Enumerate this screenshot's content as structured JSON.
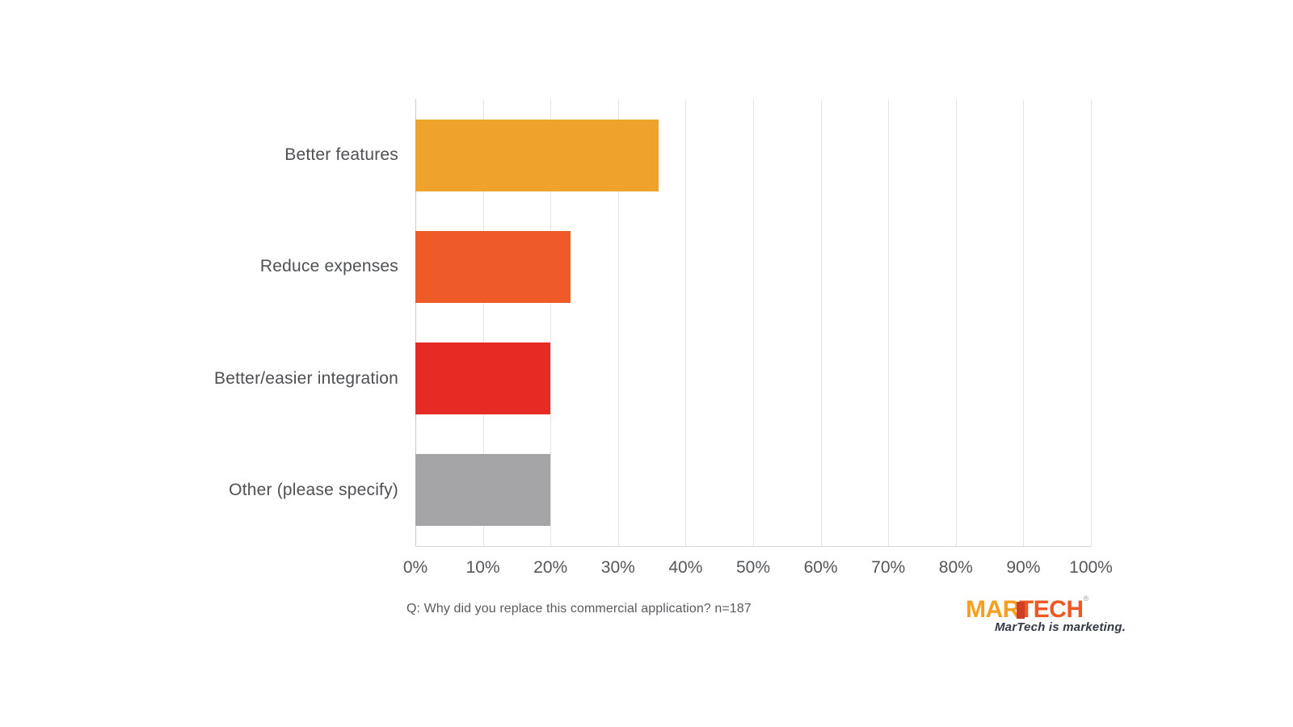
{
  "chart_data": {
    "type": "bar",
    "orientation": "horizontal",
    "title": "",
    "categories": [
      "Better features",
      "Reduce expenses",
      "Better/easier integration",
      "Other (please specify)"
    ],
    "values": [
      36,
      23,
      20,
      20
    ],
    "value_unit": "%",
    "bar_colors": [
      "#F0A32C",
      "#EE5B28",
      "#E52B24",
      "#A5A5A7"
    ],
    "x_ticks": [
      "0%",
      "10%",
      "20%",
      "30%",
      "40%",
      "50%",
      "60%",
      "70%",
      "80%",
      "90%",
      "100%"
    ],
    "xlim": [
      0,
      100
    ],
    "grid": "vertical-gridlines-every-10pct",
    "legend": "none"
  },
  "caption": "Q: Why did you replace this commercial application? n=187",
  "branding": {
    "wordmark_part1": "MAR",
    "wordmark_part2": "TECH",
    "trademark": "®",
    "tagline": "MarTech is marketing.",
    "colors": {
      "mar": "#F69F1E",
      "tech": "#EF5724",
      "notch": "#CE3F25",
      "tagline": "#333B46"
    }
  },
  "theme": {
    "background": "#FFFFFF",
    "label_text": "#4F5053",
    "tick_text": "#56575A",
    "caption_text": "#5A5B5E",
    "gridline": "#E4E4E4",
    "axis_line": "#C8C9CB"
  }
}
